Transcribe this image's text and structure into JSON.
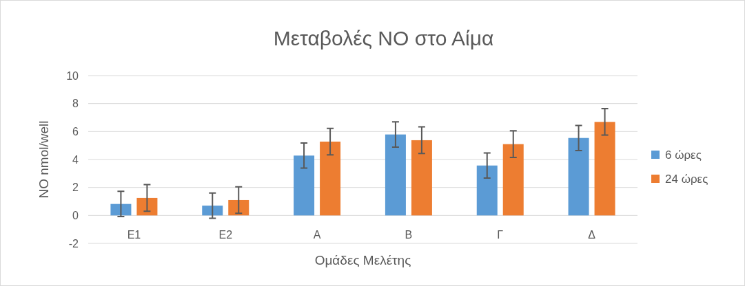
{
  "chart_data": {
    "type": "bar",
    "title": "Μεταβολές NO στο Αίμα",
    "xlabel": "Ομάδες Μελέτης",
    "ylabel": "NO nmol/well",
    "categories": [
      "E1",
      "E2",
      "A",
      "B",
      "Γ",
      "Δ"
    ],
    "series": [
      {
        "name": "6 ώρες",
        "color": "#5b9bd5",
        "values": [
          0.82,
          0.7,
          4.28,
          5.79,
          3.57,
          5.54
        ],
        "errors": [
          0.9,
          0.9,
          0.9,
          0.9,
          0.9,
          0.9
        ]
      },
      {
        "name": "24 ώρες",
        "color": "#ed7d31",
        "values": [
          1.25,
          1.1,
          5.28,
          5.38,
          5.1,
          6.69
        ],
        "errors": [
          0.95,
          0.95,
          0.95,
          0.95,
          0.95,
          0.95
        ]
      }
    ],
    "ylim": [
      -2,
      10
    ],
    "yticks": [
      -2,
      0,
      2,
      4,
      6,
      8,
      10
    ],
    "grid": "y",
    "legend": "right"
  }
}
